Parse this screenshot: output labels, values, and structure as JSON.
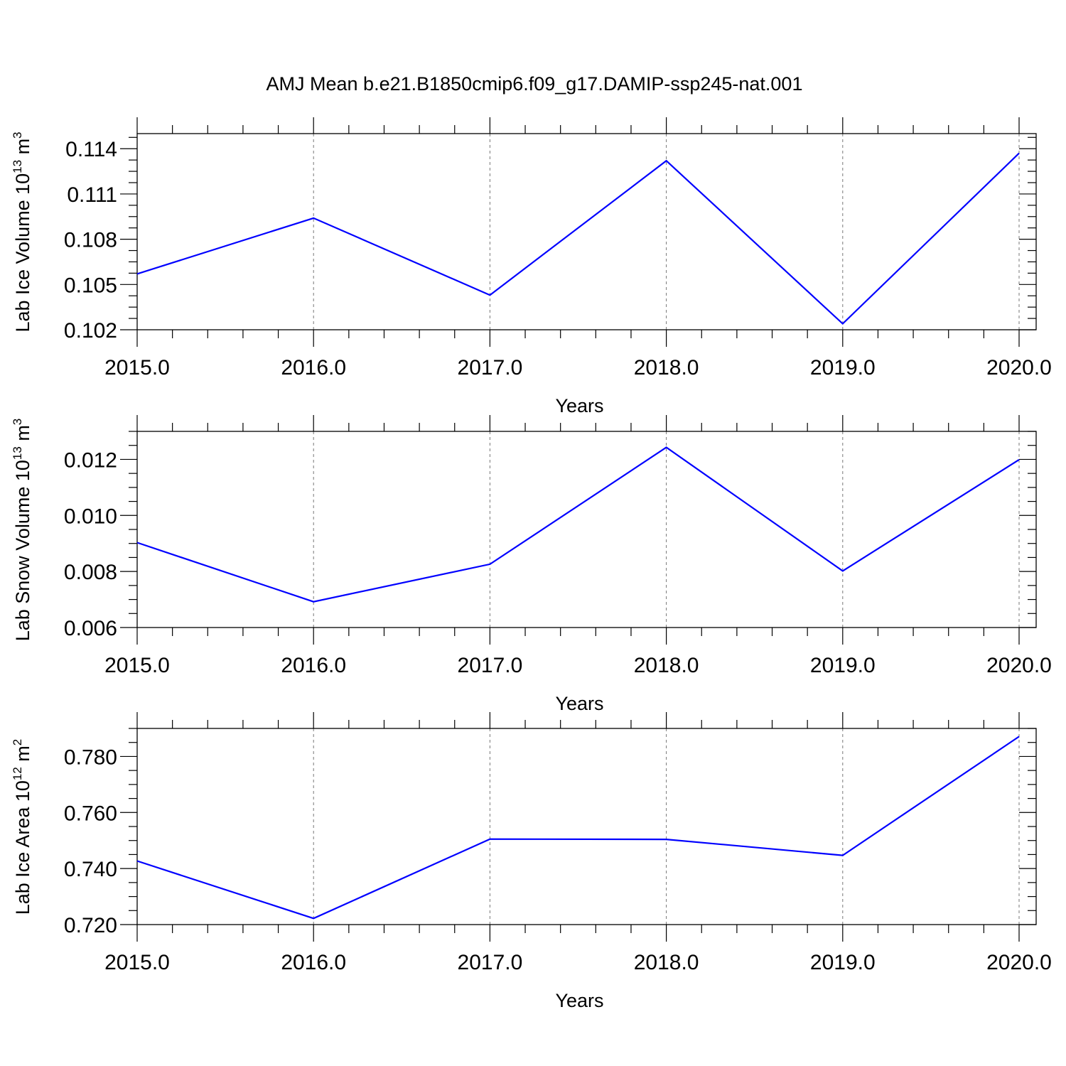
{
  "chart_data": [
    {
      "type": "line",
      "title": "AMJ Mean b.e21.B1850cmip6.f09_g17.DAMIP-ssp245-nat.001",
      "xlabel": "Years",
      "ylabel": "Lab Ice Volume 10",
      "ylabel_exp": "13",
      "ylabel_unit": " m",
      "ylabel_unit_exp": "3",
      "xlim": [
        2015,
        2020
      ],
      "ylim": [
        0.102,
        0.115
      ],
      "x_ticks": [
        2015,
        2016,
        2017,
        2018,
        2019,
        2020
      ],
      "x_tick_labels": [
        "2015.0",
        "2016.0",
        "2017.0",
        "2018.0",
        "2019.0",
        "2020.0"
      ],
      "y_ticks": [
        0.102,
        0.105,
        0.108,
        0.111,
        0.114
      ],
      "y_tick_labels": [
        "0.102",
        "0.105",
        "0.108",
        "0.111",
        "0.114"
      ],
      "grid": "x-dashed",
      "color": "#0000ff",
      "x": [
        2015,
        2016,
        2017,
        2018,
        2019,
        2020
      ],
      "y": [
        0.1057,
        0.1094,
        0.1043,
        0.1132,
        0.1024,
        0.1137
      ]
    },
    {
      "type": "line",
      "title": "",
      "xlabel": "Years",
      "ylabel": "Lab Snow Volume 10",
      "ylabel_exp": "13",
      "ylabel_unit": " m",
      "ylabel_unit_exp": "3",
      "xlim": [
        2015,
        2020
      ],
      "ylim": [
        0.006,
        0.013
      ],
      "x_ticks": [
        2015,
        2016,
        2017,
        2018,
        2019,
        2020
      ],
      "x_tick_labels": [
        "2015.0",
        "2016.0",
        "2017.0",
        "2018.0",
        "2019.0",
        "2020.0"
      ],
      "y_ticks": [
        0.006,
        0.008,
        0.01,
        0.012
      ],
      "y_tick_labels": [
        "0.006",
        "0.008",
        "0.010",
        "0.012"
      ],
      "grid": "x-dashed",
      "color": "#0000ff",
      "x": [
        2015,
        2016,
        2017,
        2018,
        2019,
        2020
      ],
      "y": [
        0.00903,
        0.00692,
        0.00826,
        0.01243,
        0.00802,
        0.01199
      ]
    },
    {
      "type": "line",
      "title": "",
      "xlabel": "Years",
      "ylabel": "Lab Ice Area 10",
      "ylabel_exp": "12",
      "ylabel_unit": " m",
      "ylabel_unit_exp": "2",
      "xlim": [
        2015,
        2020
      ],
      "ylim": [
        0.72,
        0.79
      ],
      "x_ticks": [
        2015,
        2016,
        2017,
        2018,
        2019,
        2020
      ],
      "x_tick_labels": [
        "2015.0",
        "2016.0",
        "2017.0",
        "2018.0",
        "2019.0",
        "2020.0"
      ],
      "y_ticks": [
        0.72,
        0.74,
        0.76,
        0.78
      ],
      "y_tick_labels": [
        "0.720",
        "0.740",
        "0.760",
        "0.780"
      ],
      "grid": "x-dashed",
      "color": "#0000ff",
      "x": [
        2015,
        2016,
        2017,
        2018,
        2019,
        2020
      ],
      "y": [
        0.7427,
        0.7222,
        0.7505,
        0.7504,
        0.7447,
        0.7871
      ]
    }
  ]
}
